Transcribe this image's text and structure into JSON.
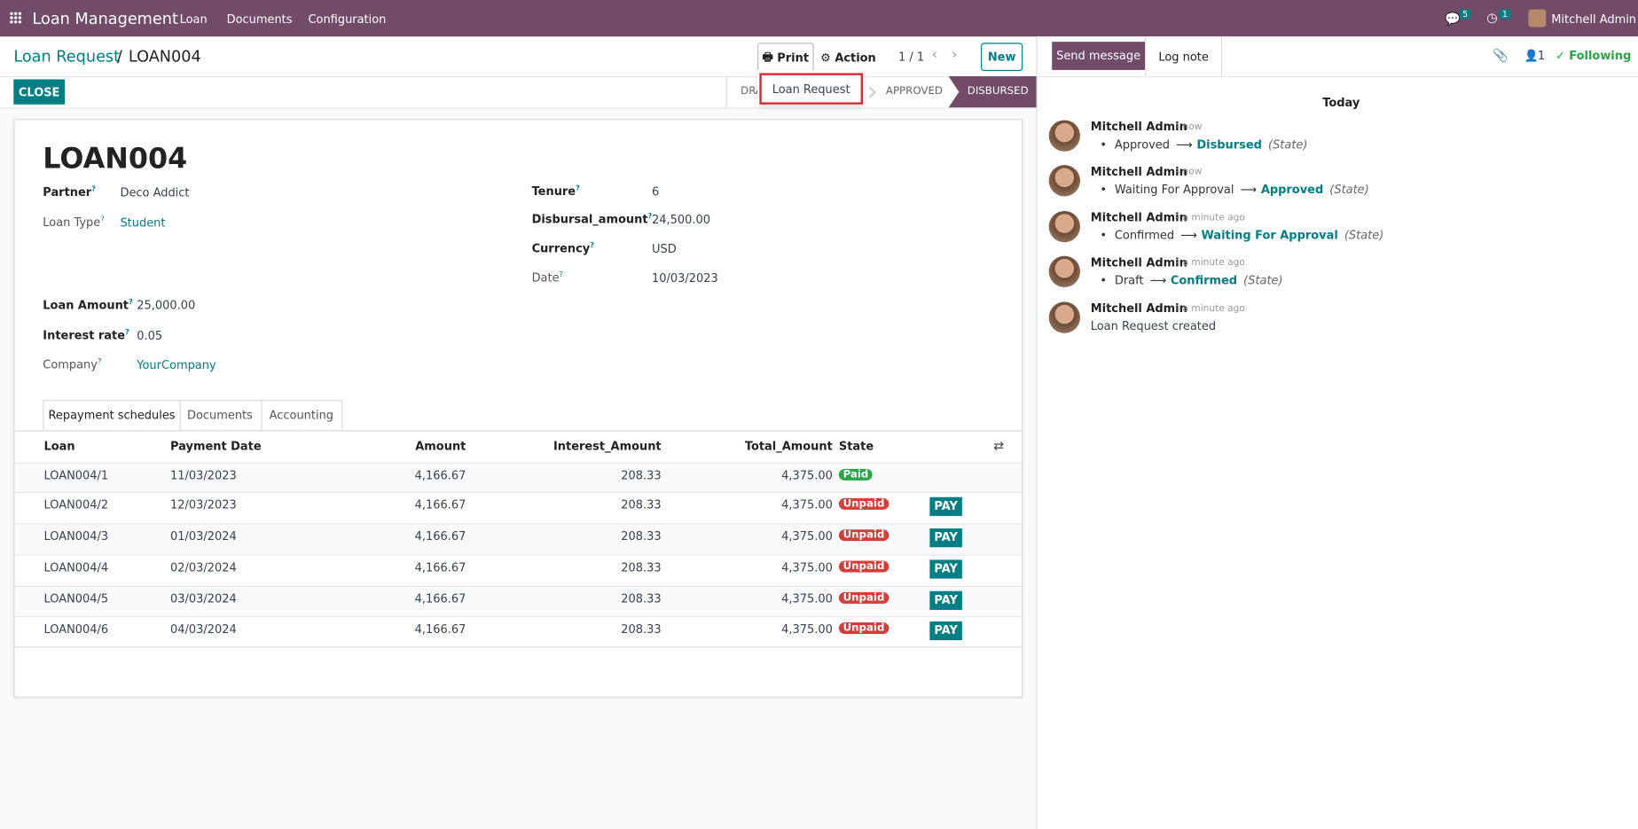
{
  "navbar": {
    "app": "Loan Management",
    "menu": [
      "Loan",
      "Documents",
      "Configuration"
    ],
    "messages_badge": "5",
    "activities_badge": "1",
    "user": "Mitchell Admin"
  },
  "control_panel": {
    "breadcrumb": "Loan Request",
    "record": "LOAN004",
    "print": "Print",
    "action": "Action",
    "pager": "1 / 1",
    "new": "New",
    "print_menu": [
      "Loan Request"
    ]
  },
  "statusbar": {
    "button": "CLOSE",
    "stages": [
      "DRAFT",
      "APPROVED",
      "DISBURSED"
    ]
  },
  "form": {
    "title": "LOAN004",
    "left": [
      {
        "label": "Partner",
        "value": "Deco Addict"
      },
      {
        "label": "Loan Type",
        "value": "Student"
      },
      {
        "label": "Loan Amount",
        "value": "25,000.00"
      },
      {
        "label": "Interest rate",
        "value": "0.05"
      },
      {
        "label": "Company",
        "value": "YourCompany"
      }
    ],
    "right": [
      {
        "label": "Tenure",
        "value": "6"
      },
      {
        "label": "Disbursal_amount",
        "value": "24,500.00"
      },
      {
        "label": "Currency",
        "value": "USD"
      },
      {
        "label": "Date",
        "value": "10/03/2023"
      }
    ],
    "tabs": [
      "Repayment schedules",
      "Documents",
      "Accounting"
    ]
  },
  "table": {
    "columns": [
      "Loan",
      "Payment Date",
      "Amount",
      "Interest_Amount",
      "Total_Amount",
      "State"
    ],
    "pay": "PAY",
    "rows": [
      [
        "LOAN004/1",
        "11/03/2023",
        "4,166.67",
        "208.33",
        "4,375.00",
        "Paid"
      ],
      [
        "LOAN004/2",
        "12/03/2023",
        "4,166.67",
        "208.33",
        "4,375.00",
        "Unpaid"
      ],
      [
        "LOAN004/3",
        "01/03/2024",
        "4,166.67",
        "208.33",
        "4,375.00",
        "Unpaid"
      ],
      [
        "LOAN004/4",
        "02/03/2024",
        "4,166.67",
        "208.33",
        "4,375.00",
        "Unpaid"
      ],
      [
        "LOAN004/5",
        "03/03/2024",
        "4,166.67",
        "208.33",
        "4,375.00",
        "Unpaid"
      ],
      [
        "LOAN004/6",
        "04/03/2024",
        "4,166.67",
        "208.33",
        "4,375.00",
        "Unpaid"
      ]
    ]
  },
  "chatter": {
    "send": "Send message",
    "log": "Log note",
    "followers": "1",
    "following": "Following",
    "day": "Today",
    "messages": [
      {
        "author": "Mitchell Admin",
        "time": "- now",
        "from": "Approved",
        "to": "Disbursed",
        "field": "(State)"
      },
      {
        "author": "Mitchell Admin",
        "time": "- now",
        "from": "Waiting For Approval",
        "to": "Approved",
        "field": "(State)"
      },
      {
        "author": "Mitchell Admin",
        "time": "- a minute ago",
        "from": "Confirmed",
        "to": "Waiting For Approval",
        "field": "(State)"
      },
      {
        "author": "Mitchell Admin",
        "time": "- a minute ago",
        "from": "Draft",
        "to": "Confirmed",
        "field": "(State)"
      },
      {
        "author": "Mitchell Admin",
        "time": "- a minute ago",
        "body": "Loan Request created"
      }
    ]
  }
}
